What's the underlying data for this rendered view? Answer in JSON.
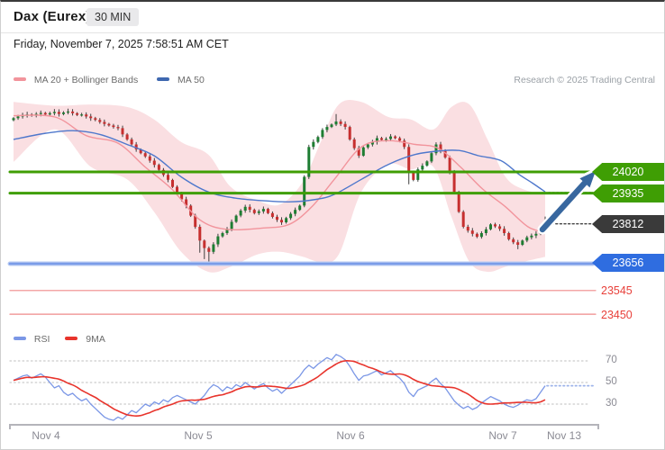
{
  "header": {
    "title": "Dax (Eurex)",
    "timeframe": "30 MIN"
  },
  "date_line": "Friday, November 7, 2025 7:58:51 AM CET",
  "attribution": "Research © 2025 Trading Central",
  "legend_main": [
    {
      "label": "MA 20 + Bollinger Bands"
    },
    {
      "label": "MA 50"
    }
  ],
  "legend_rsi": [
    {
      "label": "RSI"
    },
    {
      "label": "9MA"
    }
  ],
  "colors": {
    "accent_green": "#3f9e04",
    "flag_blue": "#2f6de0",
    "support_line_blue": "#7b9ce8",
    "flag_dark": "#3a3a3a",
    "level_red_text": "#e8403a",
    "red_line": "#ef8a8a",
    "candle_up": "#1e7d32",
    "candle_down": "#c62f2f",
    "wick": "#3f3f3f",
    "ma20": "#f2949c",
    "ma50": "#4f78cc",
    "band_fill": "#fadfe2",
    "rsi_line": "#7b97e6",
    "rsi_signal": "#e8342c",
    "grid": "#cbcbcb",
    "axis": "#b4b4ba",
    "arrow": "#38679f"
  },
  "chart_data": {
    "type": "candlestick",
    "title": "Dax (Eurex)",
    "interval": "30 MIN",
    "x_labels": [
      "Nov 4",
      "Nov 5",
      "Nov 6",
      "Nov 7",
      "Nov 13"
    ],
    "price_levels": {
      "resistances": [
        24020,
        23935
      ],
      "last_price": 23812,
      "pivot_support": 23656,
      "supports": [
        23545,
        23450
      ]
    },
    "rsi_levels": [
      70,
      50,
      30
    ],
    "candles": {
      "first_open": 24227,
      "closes": [
        24235,
        24242,
        24248,
        24250,
        24246,
        24252,
        24256,
        24250,
        24255,
        24260,
        24252,
        24258,
        24262,
        24255,
        24248,
        24250,
        24242,
        24235,
        24228,
        24220,
        24212,
        24206,
        24200,
        24195,
        24170,
        24150,
        24130,
        24110,
        24095,
        24082,
        24065,
        24048,
        24028,
        24008,
        23988,
        23960,
        23932,
        23910,
        23885,
        23845,
        23800,
        23745,
        23715,
        23700,
        23730,
        23762,
        23775,
        23792,
        23820,
        23845,
        23865,
        23880,
        23868,
        23855,
        23862,
        23872,
        23855,
        23840,
        23828,
        23818,
        23835,
        23852,
        23868,
        23885,
        24000,
        24120,
        24140,
        24160,
        24188,
        24200,
        24210,
        24222,
        24212,
        24200,
        24150,
        24115,
        24085,
        24118,
        24130,
        24140,
        24155,
        24148,
        24152,
        24162,
        24155,
        24145,
        24120,
        24020,
        23988,
        24030,
        24045,
        24062,
        24095,
        24130,
        24105,
        24078,
        24018,
        23940,
        23860,
        23800,
        23785,
        23772,
        23760,
        23775,
        23790,
        23810,
        23802,
        23792,
        23775,
        23750,
        23738,
        23728,
        23745,
        23758,
        23765,
        23772,
        23790,
        23812
      ],
      "high_overrides": {
        "9": 24270,
        "12": 24272,
        "71": 24250,
        "117": 23840
      },
      "low_overrides": {
        "41": 23698,
        "42": 23672,
        "43": 23658,
        "87": 23972,
        "111": 23712
      }
    },
    "ma20": {
      "x": [
        14,
        60,
        95,
        130,
        160,
        190,
        220,
        250,
        290,
        320,
        345,
        370,
        400,
        430,
        460,
        485,
        510,
        535,
        560,
        585,
        604
      ],
      "price": [
        24245,
        24240,
        24165,
        24135,
        24040,
        23950,
        23830,
        23790,
        23795,
        23810,
        23880,
        23990,
        24120,
        24145,
        24130,
        24115,
        24040,
        23950,
        23880,
        23800,
        23778
      ]
    },
    "ma50": {
      "x": [
        14,
        50,
        80,
        110,
        140,
        170,
        200,
        230,
        260,
        290,
        320,
        350,
        370,
        400,
        430,
        460,
        490,
        510,
        530,
        555,
        575,
        590,
        604
      ],
      "price": [
        24150,
        24175,
        24185,
        24170,
        24130,
        24085,
        24000,
        23940,
        23915,
        23905,
        23900,
        23910,
        23930,
        23990,
        24050,
        24090,
        24105,
        24105,
        24085,
        24065,
        24010,
        23975,
        23940
      ],
      "projection": 23938
    },
    "bollinger": {
      "x": [
        14,
        60,
        100,
        140,
        170,
        200,
        230,
        255,
        285,
        310,
        335,
        355,
        375,
        400,
        430,
        455,
        480,
        500,
        520,
        540,
        560,
        580,
        604
      ],
      "upper": [
        24300,
        24285,
        24290,
        24280,
        24230,
        24140,
        24090,
        23960,
        23905,
        23890,
        23980,
        24140,
        24290,
        24300,
        24240,
        24230,
        24190,
        24280,
        24290,
        24150,
        24000,
        23950,
        23930
      ],
      "lower": [
        24060,
        24190,
        24040,
        23990,
        23860,
        23700,
        23620,
        23640,
        23690,
        23700,
        23680,
        23660,
        23690,
        23940,
        24050,
        24030,
        24040,
        23840,
        23660,
        23620,
        23640,
        23660,
        23680
      ]
    },
    "rsi": {
      "signal_period": 9,
      "projection": 47,
      "values": [
        52,
        54,
        56,
        57,
        54,
        56,
        58,
        55,
        50,
        45,
        47,
        41,
        38,
        40,
        36,
        33,
        35,
        30,
        26,
        22,
        18,
        16,
        15,
        18,
        16,
        20,
        24,
        22,
        26,
        30,
        28,
        32,
        30,
        34,
        32,
        36,
        38,
        36,
        34,
        32,
        30,
        34,
        38,
        44,
        48,
        46,
        42,
        46,
        44,
        48,
        46,
        50,
        47,
        44,
        47,
        49,
        45,
        42,
        44,
        40,
        44,
        48,
        52,
        56,
        62,
        66,
        63,
        67,
        70,
        73,
        71,
        76,
        74,
        71,
        65,
        58,
        52,
        56,
        57,
        59,
        61,
        57,
        59,
        61,
        57,
        54,
        49,
        41,
        37,
        43,
        45,
        47,
        51,
        54,
        49,
        45,
        39,
        33,
        29,
        26,
        28,
        25,
        27,
        31,
        34,
        37,
        35,
        33,
        30,
        28,
        27,
        29,
        32,
        34,
        33,
        35,
        41,
        47
      ]
    },
    "trend_arrow": {
      "direction": "up",
      "from_price": 23790,
      "to_price": 24020
    }
  }
}
